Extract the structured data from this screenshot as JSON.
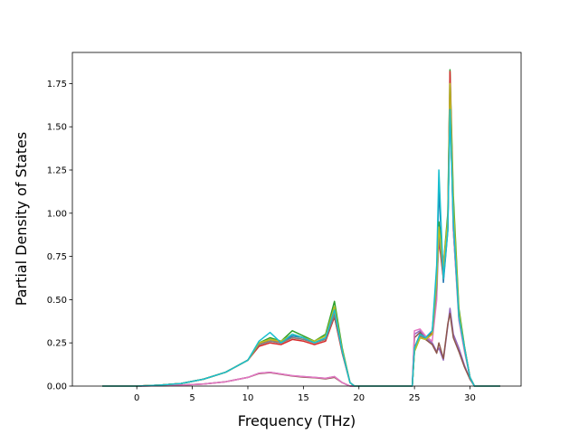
{
  "chart_data": {
    "type": "line",
    "title": "",
    "xlabel": "Frequency (THz)",
    "ylabel": "Partial Density of States",
    "xlim": [
      -5.8,
      34.6
    ],
    "ylim": [
      0.0,
      1.93
    ],
    "xticks": [
      0,
      5,
      10,
      15,
      20,
      25,
      30
    ],
    "yticks": [
      0.0,
      0.25,
      0.5,
      0.75,
      1.0,
      1.25,
      1.5,
      1.75
    ],
    "ytick_labels": [
      "0.00",
      "0.25",
      "0.50",
      "0.75",
      "1.00",
      "1.25",
      "1.50",
      "1.75"
    ],
    "grid": false,
    "legend": "none",
    "series": [
      {
        "color": "#1f77b4",
        "x": [
          -3.1,
          0,
          2,
          4,
          6,
          8,
          10,
          11,
          12,
          13,
          14,
          15,
          16,
          17,
          17.8,
          18.5,
          19.2,
          19.6,
          24.8,
          25,
          25.5,
          26,
          26.6,
          27,
          27.2,
          27.6,
          28,
          28.2,
          28.5,
          29,
          29.5,
          30,
          30.4,
          32.7
        ],
        "y": [
          0,
          0,
          0.005,
          0.015,
          0.04,
          0.08,
          0.15,
          0.24,
          0.26,
          0.25,
          0.29,
          0.28,
          0.25,
          0.28,
          0.4,
          0.2,
          0.02,
          0,
          0,
          0.22,
          0.3,
          0.28,
          0.32,
          0.6,
          1.15,
          0.6,
          0.9,
          1.7,
          0.9,
          0.4,
          0.22,
          0.05,
          0,
          0
        ]
      },
      {
        "color": "#ff7f0e",
        "x": [
          -3.1,
          0,
          2,
          4,
          6,
          8,
          10,
          11,
          12,
          13,
          14,
          15,
          16,
          17,
          17.8,
          18.5,
          19.2,
          19.6,
          24.8,
          25,
          25.5,
          26,
          26.6,
          27,
          27.2,
          27.6,
          28,
          28.2,
          28.5,
          29,
          29.5,
          30,
          30.4,
          32.7
        ],
        "y": [
          0,
          0,
          0.005,
          0.015,
          0.04,
          0.08,
          0.15,
          0.24,
          0.27,
          0.25,
          0.28,
          0.27,
          0.25,
          0.27,
          0.42,
          0.2,
          0.02,
          0,
          0,
          0.21,
          0.29,
          0.27,
          0.3,
          0.58,
          0.9,
          0.65,
          0.95,
          1.6,
          1,
          0.42,
          0.22,
          0.05,
          0,
          0
        ]
      },
      {
        "color": "#2ca02c",
        "x": [
          -3.1,
          0,
          2,
          4,
          6,
          8,
          10,
          11,
          12,
          13,
          14,
          15,
          16,
          17,
          17.8,
          18.5,
          19.2,
          19.6,
          24.8,
          25,
          25.5,
          26,
          26.6,
          27,
          27.2,
          27.6,
          28,
          28.2,
          28.5,
          29,
          29.5,
          30,
          30.4,
          32.7
        ],
        "y": [
          0,
          0,
          0.005,
          0.015,
          0.04,
          0.08,
          0.15,
          0.25,
          0.28,
          0.26,
          0.32,
          0.29,
          0.26,
          0.3,
          0.49,
          0.22,
          0.02,
          0,
          0,
          0.2,
          0.28,
          0.27,
          0.31,
          0.65,
          0.95,
          0.7,
          1,
          1.83,
          1.1,
          0.45,
          0.23,
          0.05,
          0,
          0
        ]
      },
      {
        "color": "#d62728",
        "x": [
          -3.1,
          0,
          2,
          4,
          6,
          8,
          10,
          11,
          12,
          13,
          14,
          15,
          16,
          17,
          17.8,
          18.5,
          19.2,
          19.6,
          24.8,
          25,
          25.5,
          26,
          26.6,
          27,
          27.2,
          27.6,
          28,
          28.2,
          28.5,
          29,
          29.5,
          30,
          30.4,
          32.7
        ],
        "y": [
          0,
          0,
          0.005,
          0.015,
          0.04,
          0.08,
          0.15,
          0.23,
          0.25,
          0.24,
          0.27,
          0.26,
          0.24,
          0.26,
          0.4,
          0.19,
          0.02,
          0,
          0,
          0.22,
          0.3,
          0.28,
          0.31,
          0.6,
          0.85,
          0.62,
          0.92,
          1.82,
          1,
          0.4,
          0.22,
          0.05,
          0,
          0
        ]
      },
      {
        "color": "#9467bd",
        "x": [
          -3.1,
          0,
          2,
          4,
          6,
          8,
          10,
          11,
          12,
          13,
          14,
          15,
          16,
          17,
          17.8,
          18.5,
          19.2,
          19.6,
          24.8,
          25,
          25.5,
          26,
          26.6,
          27,
          27.2,
          27.6,
          28,
          28.2,
          28.5,
          29,
          29.5,
          30,
          30.4,
          32.7
        ],
        "y": [
          0,
          0,
          0.002,
          0.006,
          0.012,
          0.025,
          0.05,
          0.075,
          0.08,
          0.07,
          0.06,
          0.055,
          0.05,
          0.045,
          0.055,
          0.02,
          0,
          0,
          0,
          0.3,
          0.32,
          0.28,
          0.25,
          0.2,
          0.22,
          0.15,
          0.35,
          0.45,
          0.3,
          0.22,
          0.12,
          0.04,
          0,
          0
        ]
      },
      {
        "color": "#8c564b",
        "x": [
          -3.1,
          0,
          2,
          4,
          6,
          8,
          10,
          11,
          12,
          13,
          14,
          15,
          16,
          17,
          17.8,
          18.5,
          19.2,
          19.6,
          24.8,
          25,
          25.5,
          26,
          26.6,
          27,
          27.2,
          27.6,
          28,
          28.2,
          28.5,
          29,
          29.5,
          30,
          30.4,
          32.7
        ],
        "y": [
          0,
          0,
          0.002,
          0.006,
          0.012,
          0.025,
          0.05,
          0.072,
          0.078,
          0.068,
          0.058,
          0.052,
          0.048,
          0.042,
          0.05,
          0.02,
          0,
          0,
          0,
          0.28,
          0.31,
          0.27,
          0.24,
          0.19,
          0.25,
          0.16,
          0.36,
          0.42,
          0.28,
          0.2,
          0.11,
          0.04,
          0,
          0
        ]
      },
      {
        "color": "#e377c2",
        "x": [
          -3.1,
          0,
          2,
          4,
          6,
          8,
          10,
          11,
          12,
          13,
          14,
          15,
          16,
          17,
          17.8,
          18.5,
          19.2,
          19.6,
          24.8,
          25,
          25.5,
          26,
          26.6,
          27,
          27.2,
          27.6,
          28,
          28.2,
          28.5,
          29,
          29.5,
          30,
          30.4,
          32.7
        ],
        "y": [
          0,
          0,
          0.002,
          0.006,
          0.012,
          0.025,
          0.05,
          0.075,
          0.08,
          0.07,
          0.06,
          0.055,
          0.05,
          0.045,
          0.055,
          0.02,
          0,
          0,
          0,
          0.32,
          0.33,
          0.29,
          0.26,
          0.5,
          0.9,
          0.7,
          0.95,
          1.68,
          0.9,
          0.38,
          0.2,
          0.05,
          0,
          0
        ]
      },
      {
        "color": "#7f7f7f",
        "x": [
          -3.1,
          0,
          2,
          4,
          6,
          8,
          10,
          11,
          12,
          13,
          14,
          15,
          16,
          17,
          17.8,
          18.5,
          19.2,
          19.6,
          24.8,
          25,
          25.5,
          26,
          26.6,
          27,
          27.2,
          27.6,
          28,
          28.2,
          28.5,
          29,
          29.5,
          30,
          30.4,
          32.7
        ],
        "y": [
          0,
          0,
          0.005,
          0.015,
          0.04,
          0.08,
          0.15,
          0.24,
          0.26,
          0.25,
          0.28,
          0.27,
          0.25,
          0.27,
          0.41,
          0.2,
          0.02,
          0,
          0,
          0.21,
          0.29,
          0.27,
          0.3,
          0.57,
          0.88,
          0.63,
          0.93,
          1.65,
          0.95,
          0.41,
          0.22,
          0.05,
          0,
          0
        ]
      },
      {
        "color": "#bcbd22",
        "x": [
          -3.1,
          0,
          2,
          4,
          6,
          8,
          10,
          11,
          12,
          13,
          14,
          15,
          16,
          17,
          17.8,
          18.5,
          19.2,
          19.6,
          24.8,
          25,
          25.5,
          26,
          26.6,
          27,
          27.2,
          27.6,
          28,
          28.2,
          28.5,
          29,
          29.5,
          30,
          30.4,
          32.7
        ],
        "y": [
          0,
          0,
          0.005,
          0.015,
          0.04,
          0.08,
          0.15,
          0.25,
          0.27,
          0.26,
          0.3,
          0.28,
          0.26,
          0.29,
          0.46,
          0.21,
          0.02,
          0,
          0,
          0.2,
          0.28,
          0.27,
          0.3,
          0.62,
          0.92,
          0.68,
          0.97,
          1.75,
          1.05,
          0.43,
          0.22,
          0.05,
          0,
          0
        ]
      },
      {
        "color": "#17becf",
        "x": [
          -3.1,
          0,
          2,
          4,
          6,
          8,
          10,
          11,
          12,
          13,
          14,
          15,
          16,
          17,
          17.8,
          18.5,
          19.2,
          19.6,
          24.8,
          25,
          25.5,
          26,
          26.6,
          27,
          27.2,
          27.6,
          28,
          28.2,
          28.5,
          29,
          29.5,
          30,
          30.4,
          32.7
        ],
        "y": [
          0,
          0,
          0.005,
          0.015,
          0.04,
          0.08,
          0.15,
          0.26,
          0.31,
          0.25,
          0.3,
          0.28,
          0.25,
          0.28,
          0.44,
          0.2,
          0.02,
          0,
          0,
          0.22,
          0.3,
          0.28,
          0.32,
          0.7,
          1.25,
          0.62,
          0.9,
          1.6,
          0.95,
          0.4,
          0.22,
          0.05,
          0,
          0
        ]
      }
    ]
  }
}
